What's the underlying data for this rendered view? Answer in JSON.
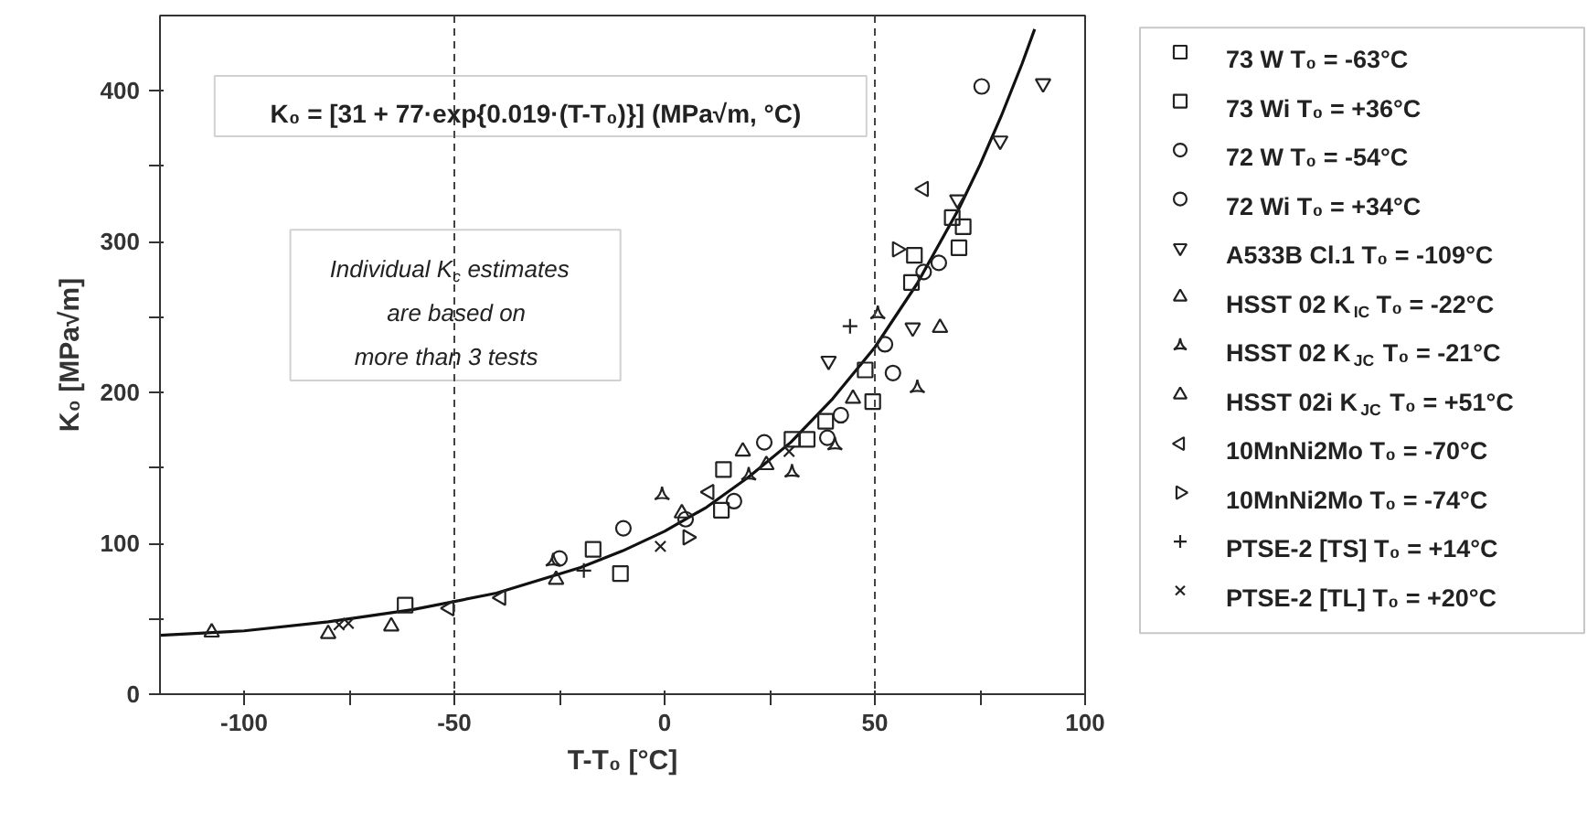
{
  "chart_data": {
    "type": "scatter",
    "xlabel": "T-T₀ [°C]",
    "ylabel": "K₀ [MPa√m]",
    "xlim": [
      -120,
      100
    ],
    "ylim": [
      0,
      450
    ],
    "xticks": [
      -100,
      {
        "value": -75,
        "label": null
      },
      -50,
      {
        "value": -25,
        "label": null
      },
      0,
      {
        "value": 25,
        "label": null
      },
      50,
      {
        "value": 75,
        "label": null
      },
      100
    ],
    "yticks": [
      0,
      {
        "value": 50,
        "label": null
      },
      100,
      {
        "value": 150,
        "label": null
      },
      200,
      {
        "value": 250,
        "label": null
      },
      300,
      {
        "value": 350,
        "label": null
      },
      400
    ],
    "grid": false,
    "legend": "right",
    "ref_lines": [
      {
        "axis": "x",
        "value": -50,
        "line_style": "dashed"
      },
      {
        "axis": "x",
        "value": 50,
        "line_style": "dashed"
      }
    ],
    "annotations": [
      "K₀ = [31 + 77·exp{0.019·(T-T₀)}] (MPa√m, °C)",
      "Individual K$_{c}$ estimates\nare based on\nmore than 3 tests"
    ],
    "series": [
      {
        "type": "line",
        "marker": "none",
        "color": "#111111",
        "x": [
          -120,
          -100,
          -80,
          -60,
          -40,
          -20,
          -10,
          0,
          10,
          20,
          30,
          40,
          50,
          60,
          70,
          75,
          80,
          85,
          88
        ],
        "values": [
          39,
          42,
          48,
          56,
          67,
          84,
          95,
          108,
          124,
          144,
          167,
          196,
          230,
          272,
          322,
          351,
          383,
          418,
          441
        ]
      },
      {
        "name": "73 W T₀ = -63°C",
        "marker": "square",
        "color": "#222222",
        "x": [
          -17,
          13.5,
          30.3,
          33.9,
          47.7,
          58.7,
          68.4
        ],
        "values": [
          96,
          122,
          169,
          169,
          215,
          273,
          316
        ]
      },
      {
        "name": "73 Wi T₀ = +36°C",
        "marker": "square",
        "color": "#222222",
        "x": [
          -61.7,
          -10.5,
          14,
          38.3,
          49.5,
          59.4,
          70,
          71
        ],
        "values": [
          59,
          80,
          149,
          181,
          194,
          291,
          296,
          310
        ]
      },
      {
        "name": "72 W T₀ = -54°C",
        "marker": "circle",
        "color": "#222222",
        "x": [
          -25,
          23.7,
          38.7,
          54.3,
          65.2,
          75.4
        ],
        "values": [
          90,
          167,
          170,
          213,
          286,
          403
        ]
      },
      {
        "name": "72 Wi T₀ = +34°C",
        "marker": "circle",
        "color": "#222222",
        "x": [
          -9.8,
          5,
          16.5,
          41.9,
          52.4,
          61.6
        ],
        "values": [
          110,
          116,
          128,
          185,
          232,
          280
        ]
      },
      {
        "name": "A533B Cl.1 T₀ = -109°C",
        "marker": "triangle down",
        "color": "#222222",
        "x": [
          39,
          59,
          69.6,
          79.8,
          90
        ],
        "values": [
          221,
          243,
          328,
          367,
          405
        ]
      },
      {
        "name": "HSST 02 K$_{IC}$ T₀ = -22°C",
        "marker": "triangle",
        "color": "#222222",
        "x": [
          -107.7,
          -80,
          -65,
          18.6
        ],
        "values": [
          41,
          40,
          45,
          161
        ]
      },
      {
        "name": "HSST 02 K$_{JC}$ T₀ = -21°C",
        "marker": "triangle pin",
        "color": "#222222",
        "x": [
          -26.5,
          -0.6,
          20,
          30.3,
          40.5,
          50.7,
          60.1
        ],
        "values": [
          88,
          132,
          145,
          147,
          165,
          252,
          203
        ]
      },
      {
        "name": "HSST 02i K$_{JC}$ T₀ = +51°C",
        "marker": "triangle",
        "color": "#222222",
        "x": [
          -25.8,
          4.1,
          24.2,
          44.8,
          65.5
        ],
        "values": [
          76,
          120,
          152,
          196,
          243
        ]
      },
      {
        "name": "10MnNi2Mo T₀ = -70°C",
        "marker": "triangle left",
        "color": "#222222",
        "x": [
          -51.2,
          -38.9,
          10.6,
          61.6
        ],
        "values": [
          57,
          64,
          134,
          335
        ]
      },
      {
        "name": "10MnNi2Mo T₀ = -74°C",
        "marker": "triangle right",
        "color": "#222222",
        "x": [
          5.5,
          55.3
        ],
        "values": [
          104,
          295
        ]
      },
      {
        "name": "PTSE-2 [TS] T₀ = +14°C",
        "marker": "cross",
        "color": "#222222",
        "x": [
          -19.2,
          44.1
        ],
        "values": [
          82,
          244
        ]
      },
      {
        "name": "PTSE-2 [TL] T₀ = +20°C",
        "marker": "x",
        "color": "#222222",
        "x": [
          -77.4,
          -75.2,
          -1,
          29.6
        ],
        "values": [
          46,
          47,
          98,
          161
        ]
      }
    ]
  }
}
